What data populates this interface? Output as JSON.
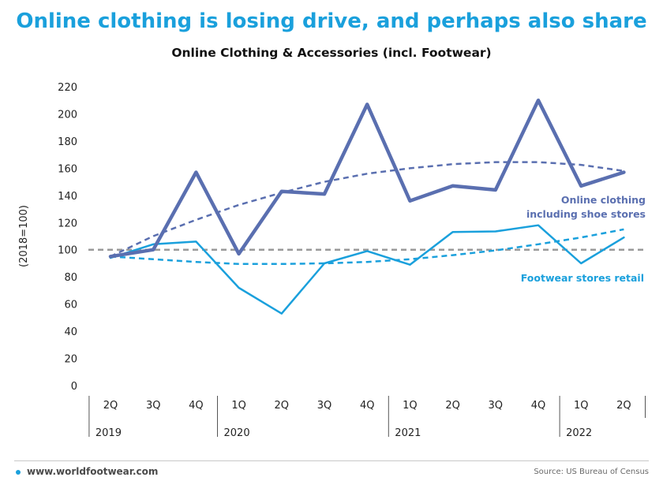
{
  "headline": "Online clothing is losing drive, and perhaps also share",
  "colors": {
    "headline": "#1aa0dc",
    "online": "#5a6fb0",
    "footwear": "#1aa0dc",
    "reference": "#9a9a9a",
    "axis_text": "#222222"
  },
  "footer": {
    "url": "www.worldfootwear.com",
    "source": "Source: US Bureau of Census"
  },
  "chart_data": {
    "type": "line",
    "title": "Online Clothing & Accessories (incl. Footwear)",
    "ylabel": "(2018=100)",
    "xlabel": "",
    "ylim": [
      0,
      220
    ],
    "yticks": [
      0,
      20,
      40,
      60,
      80,
      100,
      120,
      140,
      160,
      180,
      200,
      220
    ],
    "grid": false,
    "categories": [
      "2Q",
      "3Q",
      "4Q",
      "1Q",
      "2Q",
      "3Q",
      "4Q",
      "1Q",
      "2Q",
      "3Q",
      "4Q",
      "1Q",
      "2Q"
    ],
    "year_groups": [
      {
        "label": "2019",
        "start": 0,
        "end": 2
      },
      {
        "label": "2020",
        "start": 3,
        "end": 6
      },
      {
        "label": "2021",
        "start": 7,
        "end": 10
      },
      {
        "label": "2022",
        "start": 11,
        "end": 12
      }
    ],
    "series": [
      {
        "name": "Online clothing including shoe stores",
        "label_lines": [
          "Online clothing",
          "including shoe stores"
        ],
        "values": [
          95,
          100,
          157,
          97,
          143,
          141,
          207,
          136,
          147,
          144,
          210,
          147,
          157
        ],
        "trend": [
          95,
          110,
          122,
          133,
          142,
          150,
          156,
          160,
          163,
          164.5,
          164.5,
          162.5,
          158
        ]
      },
      {
        "name": "Footwear stores retail",
        "label_lines": [
          "Footwear stores retail"
        ],
        "values": [
          94,
          104,
          106,
          72,
          53,
          90,
          99,
          89,
          113,
          113.5,
          118,
          90,
          109
        ],
        "trend": [
          95,
          93,
          91,
          89.5,
          89.5,
          90,
          91,
          93,
          96,
          99.5,
          104,
          109,
          115
        ]
      }
    ],
    "reference_line": 100
  }
}
